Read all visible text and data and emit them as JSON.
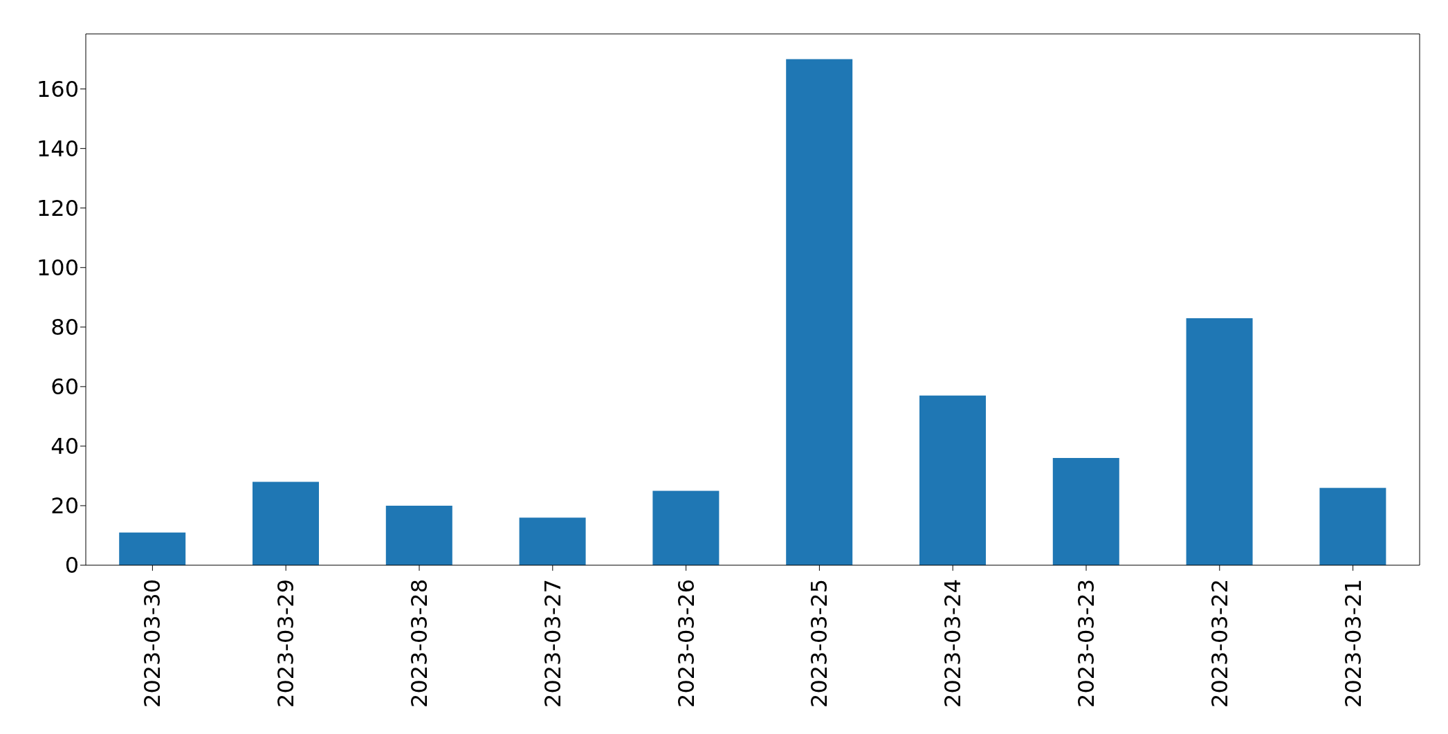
{
  "chart_data": {
    "type": "bar",
    "categories": [
      "2023-03-30",
      "2023-03-29",
      "2023-03-28",
      "2023-03-27",
      "2023-03-26",
      "2023-03-25",
      "2023-03-24",
      "2023-03-23",
      "2023-03-22",
      "2023-03-21"
    ],
    "values": [
      11,
      28,
      20,
      16,
      25,
      170,
      57,
      36,
      83,
      26
    ],
    "color": "#1f77b4",
    "ylim": [
      0,
      178.5
    ],
    "yticks": [
      0,
      20,
      40,
      60,
      80,
      100,
      120,
      140,
      160
    ],
    "grid": false
  }
}
